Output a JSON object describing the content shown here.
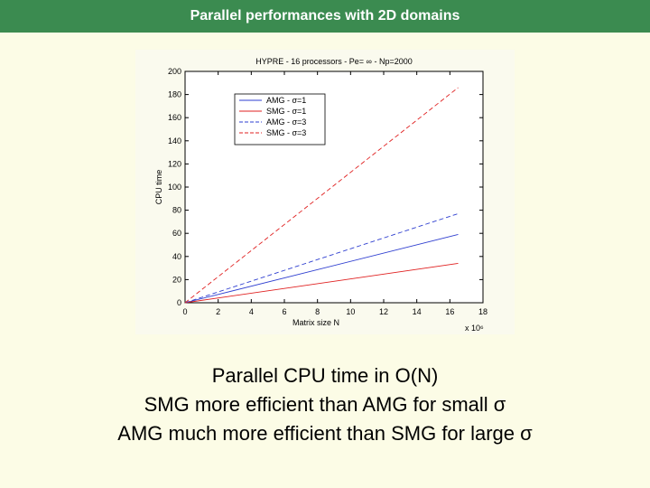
{
  "header": {
    "title": "Parallel performances with 2D domains"
  },
  "caption": {
    "line1": "Parallel CPU time in O(N)",
    "line2": "SMG more efficient than AMG for small σ",
    "line3": "AMG much more efficient than SMG for large σ"
  },
  "colors": {
    "header_bg": "#3b8b50",
    "page_bg": "#fcfce6",
    "blue": "#2f3fd0",
    "red": "#e02020"
  },
  "chart_data": {
    "type": "line",
    "title": "HYPRE - 16 processors - Pe= ∞ - Np=2000",
    "xlabel": "Matrix size N",
    "ylabel": "CPU time",
    "x_multiplier": "x 10⁶",
    "xlim": [
      0,
      18
    ],
    "ylim": [
      0,
      200
    ],
    "xticks": [
      0,
      2,
      4,
      6,
      8,
      10,
      12,
      14,
      16,
      18
    ],
    "yticks": [
      0,
      20,
      40,
      60,
      80,
      100,
      120,
      140,
      160,
      180,
      200
    ],
    "legend_position": "top-left",
    "series": [
      {
        "name": "AMG - σ=1",
        "color": "#2f3fd0",
        "style": "solid",
        "x": [
          0,
          16.5
        ],
        "y": [
          0,
          59
        ]
      },
      {
        "name": "SMG - σ=1",
        "color": "#e02020",
        "style": "solid",
        "x": [
          0,
          16.5
        ],
        "y": [
          0,
          34
        ]
      },
      {
        "name": "AMG - σ=3",
        "color": "#2f3fd0",
        "style": "dashed",
        "x": [
          0,
          16.5
        ],
        "y": [
          0,
          77
        ]
      },
      {
        "name": "SMG - σ=3",
        "color": "#e02020",
        "style": "dashed",
        "x": [
          0,
          16.5
        ],
        "y": [
          0,
          186
        ]
      }
    ]
  }
}
